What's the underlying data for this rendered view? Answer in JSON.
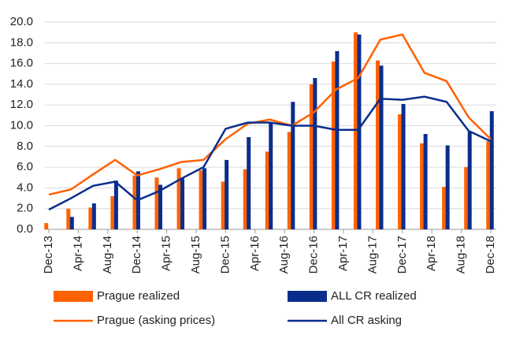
{
  "chart_data": {
    "type": "bar_line",
    "x": [
      0,
      3,
      6,
      9,
      12,
      15,
      18,
      21,
      24,
      27,
      30,
      33,
      36,
      39,
      42,
      45,
      48,
      51,
      54,
      57,
      60
    ],
    "xlim": [
      0,
      60
    ],
    "xticks": [
      {
        "value": 0,
        "label": "Dec-13"
      },
      {
        "value": 4,
        "label": "Apr-14"
      },
      {
        "value": 8,
        "label": "Aug-14"
      },
      {
        "value": 12,
        "label": "Dec-14"
      },
      {
        "value": 16,
        "label": "Apr-15"
      },
      {
        "value": 20,
        "label": "Aug-15"
      },
      {
        "value": 24,
        "label": "Dec-15"
      },
      {
        "value": 28,
        "label": "Apr-16"
      },
      {
        "value": 32,
        "label": "Aug-16"
      },
      {
        "value": 36,
        "label": "Dec-16"
      },
      {
        "value": 40,
        "label": "Apr-17"
      },
      {
        "value": 44,
        "label": "Aug-17"
      },
      {
        "value": 48,
        "label": "Dec-17"
      },
      {
        "value": 52,
        "label": "Apr-18"
      },
      {
        "value": 56,
        "label": "Aug-18"
      },
      {
        "value": 60,
        "label": "Dec-18"
      }
    ],
    "ylim": [
      0,
      20
    ],
    "yticks": [
      {
        "value": 0,
        "label": "0.0"
      },
      {
        "value": 2,
        "label": "2.0"
      },
      {
        "value": 4,
        "label": "4.0"
      },
      {
        "value": 6,
        "label": "6.0"
      },
      {
        "value": 8,
        "label": "8.0"
      },
      {
        "value": 10,
        "label": "10.0"
      },
      {
        "value": 12,
        "label": "12.0"
      },
      {
        "value": 14,
        "label": "14.0"
      },
      {
        "value": 16,
        "label": "16.0"
      },
      {
        "value": 18,
        "label": "18.0"
      },
      {
        "value": 20,
        "label": "20.0"
      }
    ],
    "grid": true,
    "series": [
      {
        "name": "Prague realized",
        "kind": "bar",
        "color": "#ff6200",
        "values": [
          0.6,
          2.0,
          2.1,
          3.2,
          5.2,
          5.0,
          5.9,
          5.7,
          4.6,
          5.8,
          7.5,
          9.4,
          14.0,
          16.2,
          19.0,
          16.3,
          11.1,
          8.3,
          4.1,
          6.0,
          8.5
        ]
      },
      {
        "name": "ALL CR realized",
        "kind": "bar",
        "color": "#0a2d8c",
        "values": [
          null,
          1.2,
          2.5,
          4.7,
          5.6,
          4.3,
          4.9,
          5.9,
          6.7,
          8.9,
          10.3,
          12.3,
          14.6,
          17.2,
          18.8,
          15.8,
          12.1,
          9.2,
          8.1,
          9.4,
          11.4
        ]
      },
      {
        "name": "Prague (asking prices)",
        "kind": "line",
        "color": "#ff6200",
        "values": [
          3.35,
          3.85,
          5.3,
          6.7,
          5.2,
          5.8,
          6.5,
          6.7,
          8.7,
          10.2,
          10.6,
          10.0,
          11.3,
          13.5,
          14.6,
          18.3,
          18.8,
          15.1,
          14.3,
          10.8,
          8.7
        ]
      },
      {
        "name": "All CR asking",
        "kind": "line",
        "color": "#0a2d8c",
        "values": [
          1.9,
          3.0,
          4.2,
          4.6,
          2.8,
          3.7,
          4.9,
          6.0,
          9.7,
          10.3,
          10.3,
          10.0,
          10.0,
          9.6,
          9.6,
          12.6,
          12.5,
          12.8,
          12.3,
          9.5,
          8.5
        ]
      }
    ]
  }
}
